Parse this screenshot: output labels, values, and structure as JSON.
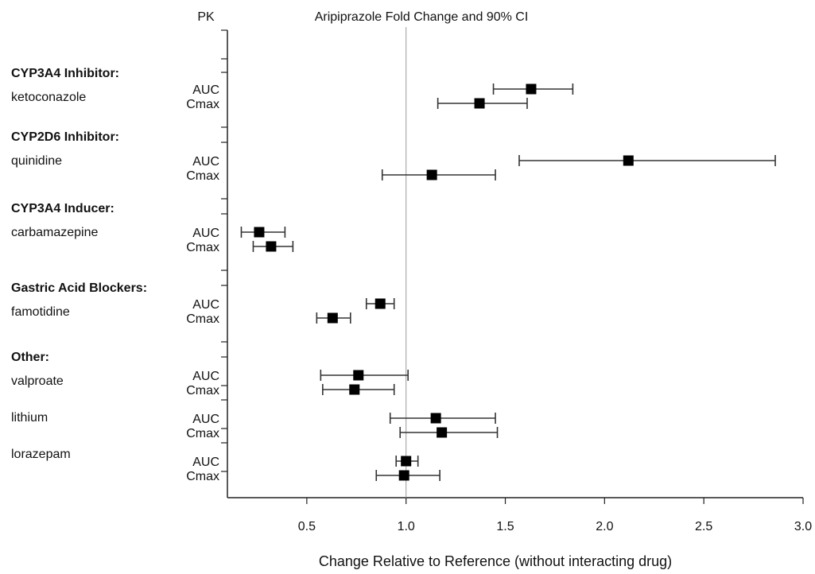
{
  "chart_data": {
    "type": "forest",
    "header_left": "PK",
    "title": "Aripiprazole Fold Change and 90% CI",
    "xlabel": "Change Relative to Reference (without interacting drug)",
    "xlim": [
      0.1,
      3.0
    ],
    "xticks": [
      "0.5",
      "1.0",
      "1.5",
      "2.0",
      "2.5",
      "3.0"
    ],
    "reference_line": 1.0,
    "groups": [
      {
        "label": "CYP3A4 Inhibitor:",
        "drugs": [
          {
            "name": "ketoconazole",
            "rows": [
              {
                "pk": "AUC",
                "estimate": 1.63,
                "lower": 1.44,
                "upper": 1.84
              },
              {
                "pk": "Cmax",
                "estimate": 1.37,
                "lower": 1.16,
                "upper": 1.61
              }
            ]
          }
        ]
      },
      {
        "label": "CYP2D6 Inhibitor:",
        "drugs": [
          {
            "name": "quinidine",
            "rows": [
              {
                "pk": "AUC",
                "estimate": 2.12,
                "lower": 1.57,
                "upper": 2.86
              },
              {
                "pk": "Cmax",
                "estimate": 1.13,
                "lower": 0.88,
                "upper": 1.45
              }
            ]
          }
        ]
      },
      {
        "label": "CYP3A4 Inducer:",
        "drugs": [
          {
            "name": "carbamazepine",
            "rows": [
              {
                "pk": "AUC",
                "estimate": 0.26,
                "lower": 0.17,
                "upper": 0.39
              },
              {
                "pk": "Cmax",
                "estimate": 0.32,
                "lower": 0.23,
                "upper": 0.43
              }
            ]
          }
        ]
      },
      {
        "label": "Gastric Acid Blockers:",
        "drugs": [
          {
            "name": "famotidine",
            "rows": [
              {
                "pk": "AUC",
                "estimate": 0.87,
                "lower": 0.8,
                "upper": 0.94
              },
              {
                "pk": "Cmax",
                "estimate": 0.63,
                "lower": 0.55,
                "upper": 0.72
              }
            ]
          }
        ]
      },
      {
        "label": "Other:",
        "drugs": [
          {
            "name": "valproate",
            "rows": [
              {
                "pk": "AUC",
                "estimate": 0.76,
                "lower": 0.57,
                "upper": 1.01
              },
              {
                "pk": "Cmax",
                "estimate": 0.74,
                "lower": 0.58,
                "upper": 0.94
              }
            ]
          },
          {
            "name": "lithium",
            "rows": [
              {
                "pk": "AUC",
                "estimate": 1.15,
                "lower": 0.92,
                "upper": 1.45
              },
              {
                "pk": "Cmax",
                "estimate": 1.18,
                "lower": 0.97,
                "upper": 1.46
              }
            ]
          },
          {
            "name": "lorazepam",
            "rows": [
              {
                "pk": "AUC",
                "estimate": 1.0,
                "lower": 0.95,
                "upper": 1.06
              },
              {
                "pk": "Cmax",
                "estimate": 0.99,
                "lower": 0.85,
                "upper": 1.17
              }
            ]
          }
        ]
      }
    ]
  }
}
